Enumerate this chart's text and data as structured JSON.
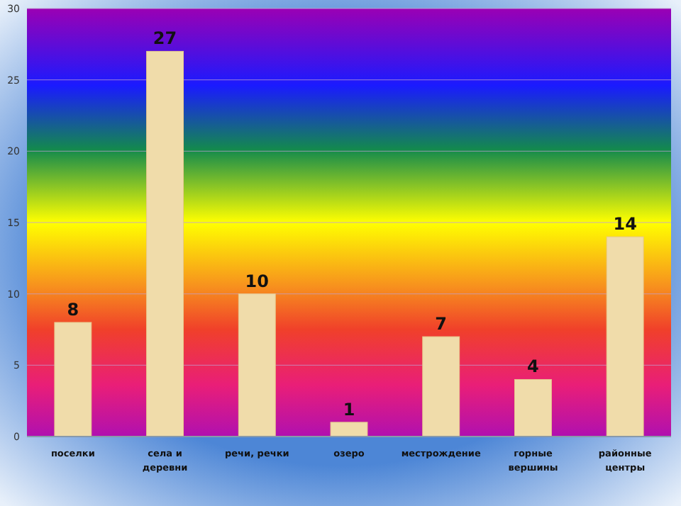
{
  "chart_data": {
    "type": "bar",
    "categories": [
      "поселки",
      "села и деревни",
      "речи, речки",
      "озеро",
      "местрождение",
      "горные вершины",
      "районные центры"
    ],
    "values": [
      8,
      27,
      10,
      1,
      7,
      4,
      14
    ],
    "color": "#f0dcaa",
    "ylim": [
      0,
      30
    ],
    "yticks": [
      0,
      5,
      10,
      15,
      20,
      25,
      30
    ],
    "grid": "y",
    "data_labels": true
  }
}
